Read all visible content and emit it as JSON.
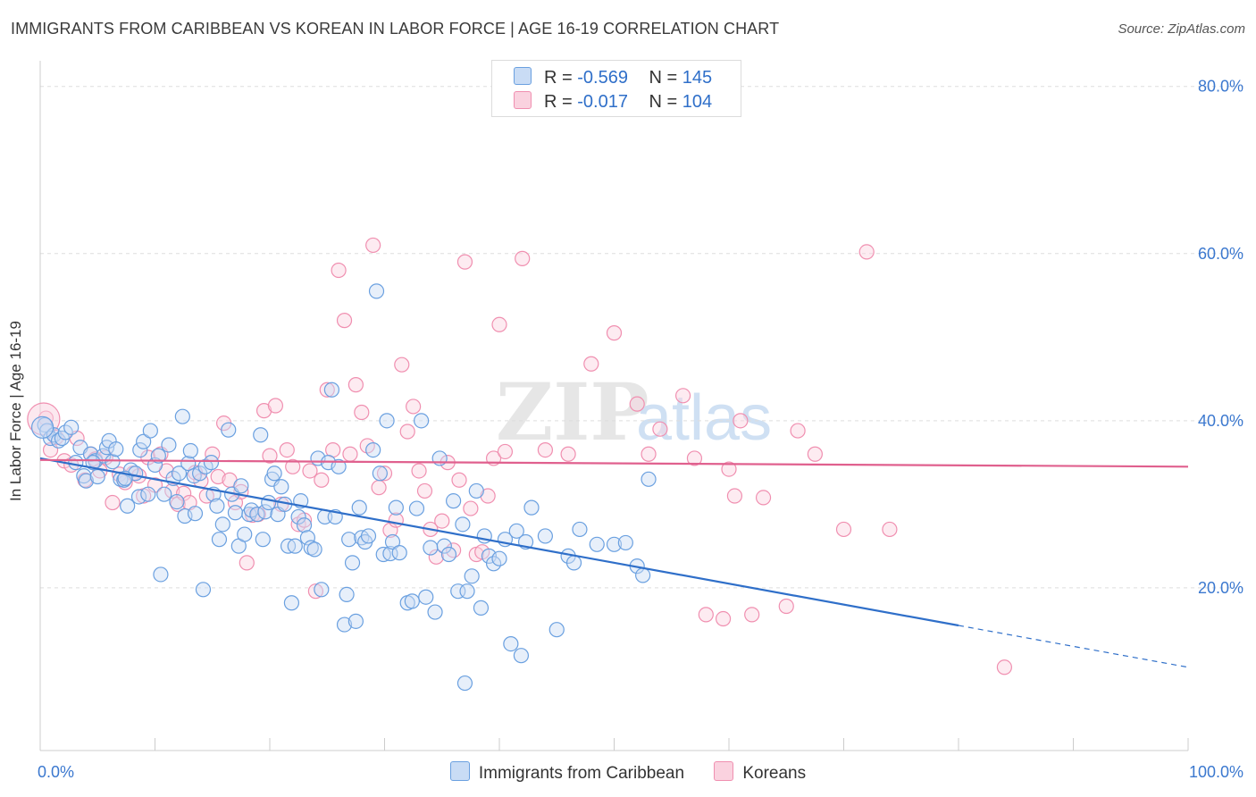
{
  "header": {
    "title": "IMMIGRANTS FROM CARIBBEAN VS KOREAN IN LABOR FORCE | AGE 16-19 CORRELATION CHART",
    "source": "Source: ZipAtlas.com"
  },
  "watermark": {
    "zip": "ZIP",
    "atlas": "atlas"
  },
  "legend": {
    "rows": [
      {
        "r_label": "R =",
        "r_value": "-0.569",
        "n_label": "N =",
        "n_value": "145",
        "color": "#9ec3ee"
      },
      {
        "r_label": "R =",
        "r_value": "-0.017",
        "n_label": "N =",
        "n_value": "104",
        "color": "#f4b4c8"
      }
    ]
  },
  "chart_data": {
    "type": "scatter",
    "title": "IMMIGRANTS FROM CARIBBEAN VS KOREAN IN LABOR FORCE | AGE 16-19 CORRELATION CHART",
    "ylabel": "In Labor Force | Age 16-19",
    "xlabel": "",
    "xlim": [
      0,
      100
    ],
    "ylim": [
      0,
      82
    ],
    "x_tick_labels": [
      {
        "value": 0,
        "label": "0.0%"
      },
      {
        "value": 100,
        "label": "100.0%"
      }
    ],
    "y_tick_labels": [
      {
        "value": 20,
        "label": "20.0%"
      },
      {
        "value": 40,
        "label": "40.0%"
      },
      {
        "value": 60,
        "label": "60.0%"
      },
      {
        "value": 80,
        "label": "80.0%"
      }
    ],
    "grid": true,
    "legend_position": "bottom",
    "series": [
      {
        "name": "Immigrants from Caribbean",
        "color": "#6aa0e0",
        "line_color": "#2f6fc9",
        "trend": {
          "x0": 0,
          "y0": 35.5,
          "x1": 80,
          "y1": 15.5,
          "dashed_to_x": 100,
          "dashed_to_y": 10.5
        },
        "points": [
          [
            0.4,
            39.5
          ],
          [
            0.6,
            38.8
          ],
          [
            0.9,
            37.9
          ],
          [
            1.2,
            38.3
          ],
          [
            1.6,
            37.6
          ],
          [
            1.9,
            37.9
          ],
          [
            2.2,
            38.6
          ],
          [
            2.7,
            39.2
          ],
          [
            3.1,
            35.0
          ],
          [
            3.5,
            36.8
          ],
          [
            3.8,
            33.4
          ],
          [
            4.0,
            32.8
          ],
          [
            4.4,
            36.0
          ],
          [
            4.8,
            35.2
          ],
          [
            5.0,
            33.3
          ],
          [
            5.5,
            35.8
          ],
          [
            5.8,
            36.8
          ],
          [
            6.0,
            37.6
          ],
          [
            6.3,
            35.1
          ],
          [
            6.6,
            36.6
          ],
          [
            7.0,
            33.0
          ],
          [
            7.3,
            32.9
          ],
          [
            7.6,
            29.8
          ],
          [
            7.9,
            34.1
          ],
          [
            8.3,
            33.7
          ],
          [
            8.6,
            30.9
          ],
          [
            8.7,
            36.5
          ],
          [
            9.0,
            37.5
          ],
          [
            9.4,
            31.2
          ],
          [
            9.6,
            38.8
          ],
          [
            10.0,
            34.7
          ],
          [
            10.3,
            35.8
          ],
          [
            10.5,
            21.6
          ],
          [
            10.8,
            31.2
          ],
          [
            11.2,
            37.1
          ],
          [
            11.6,
            33.1
          ],
          [
            11.9,
            30.3
          ],
          [
            12.1,
            33.7
          ],
          [
            12.4,
            40.5
          ],
          [
            12.6,
            28.6
          ],
          [
            12.9,
            34.9
          ],
          [
            13.1,
            36.4
          ],
          [
            13.4,
            33.4
          ],
          [
            13.5,
            28.9
          ],
          [
            13.9,
            33.7
          ],
          [
            14.2,
            19.8
          ],
          [
            14.4,
            34.5
          ],
          [
            14.9,
            35.0
          ],
          [
            15.1,
            31.2
          ],
          [
            15.4,
            29.8
          ],
          [
            15.6,
            25.8
          ],
          [
            15.9,
            27.6
          ],
          [
            16.4,
            38.9
          ],
          [
            16.7,
            31.2
          ],
          [
            17.0,
            29.0
          ],
          [
            17.3,
            25.0
          ],
          [
            17.5,
            32.2
          ],
          [
            17.8,
            26.4
          ],
          [
            18.2,
            28.8
          ],
          [
            18.4,
            29.3
          ],
          [
            18.9,
            28.8
          ],
          [
            19.2,
            38.3
          ],
          [
            19.4,
            25.8
          ],
          [
            19.6,
            29.1
          ],
          [
            19.9,
            30.2
          ],
          [
            20.2,
            33.0
          ],
          [
            20.4,
            33.7
          ],
          [
            20.7,
            28.8
          ],
          [
            21.0,
            32.1
          ],
          [
            21.3,
            30.0
          ],
          [
            21.6,
            25.0
          ],
          [
            21.9,
            18.2
          ],
          [
            22.2,
            25.0
          ],
          [
            22.5,
            28.5
          ],
          [
            22.7,
            30.4
          ],
          [
            23.0,
            27.5
          ],
          [
            23.3,
            26.0
          ],
          [
            23.6,
            24.8
          ],
          [
            23.9,
            24.6
          ],
          [
            24.2,
            35.5
          ],
          [
            24.5,
            19.8
          ],
          [
            24.8,
            28.5
          ],
          [
            25.1,
            35.0
          ],
          [
            25.4,
            43.7
          ],
          [
            25.7,
            28.5
          ],
          [
            26.0,
            34.5
          ],
          [
            26.5,
            15.6
          ],
          [
            26.7,
            19.2
          ],
          [
            26.9,
            25.8
          ],
          [
            27.2,
            23.0
          ],
          [
            27.5,
            16.0
          ],
          [
            27.8,
            29.6
          ],
          [
            28.0,
            26.0
          ],
          [
            28.3,
            25.5
          ],
          [
            28.6,
            26.2
          ],
          [
            29.0,
            36.5
          ],
          [
            29.3,
            55.5
          ],
          [
            29.6,
            33.7
          ],
          [
            29.9,
            24.0
          ],
          [
            30.2,
            40.0
          ],
          [
            30.5,
            24.1
          ],
          [
            30.7,
            25.5
          ],
          [
            31.0,
            29.6
          ],
          [
            31.3,
            24.2
          ],
          [
            32.0,
            18.2
          ],
          [
            32.4,
            18.4
          ],
          [
            32.8,
            29.5
          ],
          [
            33.2,
            40.0
          ],
          [
            33.6,
            18.9
          ],
          [
            34.0,
            24.8
          ],
          [
            34.4,
            17.1
          ],
          [
            34.8,
            35.5
          ],
          [
            35.2,
            25.0
          ],
          [
            35.6,
            24.0
          ],
          [
            36.0,
            30.4
          ],
          [
            36.4,
            19.6
          ],
          [
            36.8,
            27.6
          ],
          [
            37.2,
            19.6
          ],
          [
            37.6,
            21.4
          ],
          [
            38.0,
            31.6
          ],
          [
            38.4,
            17.6
          ],
          [
            38.7,
            26.2
          ],
          [
            39.1,
            23.8
          ],
          [
            39.5,
            22.9
          ],
          [
            40.0,
            23.5
          ],
          [
            40.5,
            25.8
          ],
          [
            41.0,
            13.3
          ],
          [
            41.5,
            26.8
          ],
          [
            41.9,
            11.9
          ],
          [
            42.3,
            25.5
          ],
          [
            42.8,
            29.6
          ],
          [
            44.0,
            26.2
          ],
          [
            45.0,
            15.0
          ],
          [
            46.0,
            23.8
          ],
          [
            46.5,
            23.0
          ],
          [
            47.0,
            27.0
          ],
          [
            48.5,
            25.2
          ],
          [
            50.0,
            25.2
          ],
          [
            51.0,
            25.4
          ],
          [
            52.0,
            22.6
          ],
          [
            52.5,
            21.5
          ],
          [
            53.0,
            33.0
          ],
          [
            37.0,
            8.6
          ],
          [
            7.4,
            33.1
          ],
          [
            4.6,
            35.0
          ]
        ]
      },
      {
        "name": "Koreans",
        "color": "#f08fb0",
        "line_color": "#e0608e",
        "trend": {
          "x0": 0,
          "y0": 35.3,
          "x1": 100,
          "y1": 34.5
        },
        "points": [
          [
            0.5,
            40.3
          ],
          [
            0.9,
            36.5
          ],
          [
            1.4,
            38.0
          ],
          [
            2.1,
            35.2
          ],
          [
            2.7,
            34.7
          ],
          [
            3.2,
            37.9
          ],
          [
            3.9,
            32.9
          ],
          [
            4.4,
            36.0
          ],
          [
            4.8,
            35.4
          ],
          [
            5.2,
            34.0
          ],
          [
            5.7,
            35.6
          ],
          [
            6.3,
            30.2
          ],
          [
            6.9,
            33.6
          ],
          [
            7.4,
            32.6
          ],
          [
            8.1,
            33.7
          ],
          [
            8.6,
            33.4
          ],
          [
            9.0,
            31.0
          ],
          [
            9.4,
            35.6
          ],
          [
            10.0,
            32.3
          ],
          [
            10.5,
            36.0
          ],
          [
            11.0,
            34.0
          ],
          [
            11.5,
            31.6
          ],
          [
            12.0,
            30.0
          ],
          [
            12.5,
            31.3
          ],
          [
            13.0,
            30.2
          ],
          [
            13.5,
            33.8
          ],
          [
            14.0,
            32.8
          ],
          [
            14.5,
            31.0
          ],
          [
            15.0,
            36.0
          ],
          [
            15.5,
            33.3
          ],
          [
            16.0,
            39.7
          ],
          [
            16.5,
            32.9
          ],
          [
            17.0,
            30.2
          ],
          [
            17.5,
            31.5
          ],
          [
            18.0,
            23.0
          ],
          [
            18.5,
            28.7
          ],
          [
            19.0,
            28.8
          ],
          [
            19.5,
            41.2
          ],
          [
            20.0,
            35.8
          ],
          [
            20.5,
            41.8
          ],
          [
            21.0,
            30.0
          ],
          [
            21.5,
            36.5
          ],
          [
            22.0,
            34.5
          ],
          [
            22.5,
            27.6
          ],
          [
            23.0,
            28.1
          ],
          [
            23.5,
            34.0
          ],
          [
            24.0,
            19.6
          ],
          [
            24.5,
            32.9
          ],
          [
            25.0,
            43.7
          ],
          [
            25.5,
            36.5
          ],
          [
            26.0,
            58.0
          ],
          [
            26.5,
            52.0
          ],
          [
            27.0,
            36.0
          ],
          [
            27.5,
            44.3
          ],
          [
            28.0,
            41.0
          ],
          [
            28.5,
            37.0
          ],
          [
            29.0,
            61.0
          ],
          [
            29.5,
            32.0
          ],
          [
            30.0,
            33.7
          ],
          [
            30.5,
            26.9
          ],
          [
            31.0,
            28.1
          ],
          [
            31.5,
            46.7
          ],
          [
            32.0,
            38.7
          ],
          [
            32.5,
            41.7
          ],
          [
            33.0,
            34.0
          ],
          [
            33.5,
            31.6
          ],
          [
            34.0,
            27.0
          ],
          [
            34.5,
            23.7
          ],
          [
            35.0,
            28.0
          ],
          [
            35.5,
            35.0
          ],
          [
            36.0,
            24.5
          ],
          [
            36.5,
            32.9
          ],
          [
            37.0,
            59.0
          ],
          [
            37.5,
            29.5
          ],
          [
            38.0,
            24.0
          ],
          [
            38.5,
            24.3
          ],
          [
            39.0,
            31.0
          ],
          [
            39.5,
            35.5
          ],
          [
            40.0,
            51.5
          ],
          [
            40.5,
            36.3
          ],
          [
            42.0,
            59.4
          ],
          [
            44.0,
            36.5
          ],
          [
            46.0,
            36.0
          ],
          [
            48.0,
            46.8
          ],
          [
            50.0,
            50.5
          ],
          [
            53.0,
            36.0
          ],
          [
            59.5,
            16.3
          ],
          [
            60.0,
            34.2
          ],
          [
            61.0,
            40.0
          ],
          [
            62.0,
            16.8
          ],
          [
            65.0,
            17.8
          ],
          [
            66.0,
            38.8
          ],
          [
            67.5,
            36.0
          ],
          [
            70.0,
            27.0
          ],
          [
            72.0,
            60.2
          ],
          [
            74.0,
            27.0
          ],
          [
            84.0,
            10.5
          ],
          [
            56.0,
            43.0
          ],
          [
            52.0,
            42.0
          ],
          [
            54.0,
            39.0
          ],
          [
            57.0,
            35.5
          ],
          [
            60.5,
            31.0
          ],
          [
            63.0,
            30.8
          ],
          [
            58.0,
            16.8
          ]
        ]
      }
    ]
  }
}
